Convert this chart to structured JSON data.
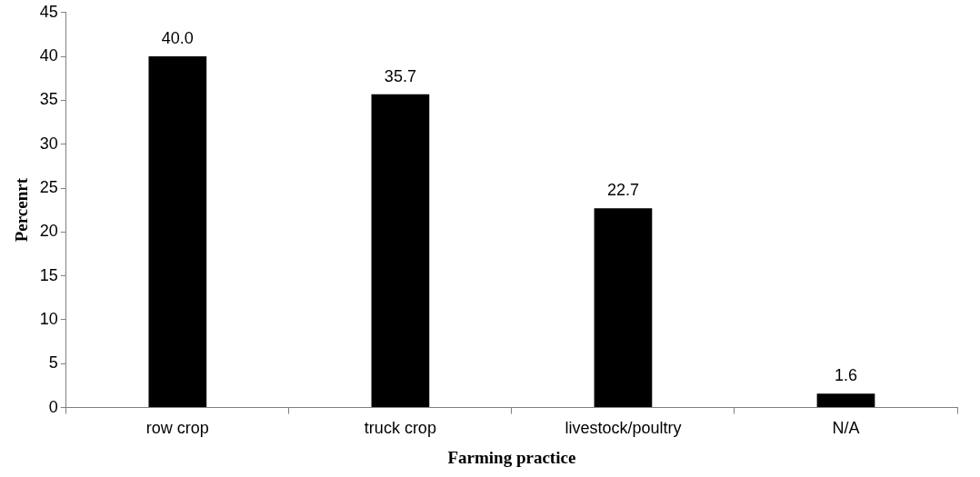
{
  "chart_data": {
    "type": "bar",
    "xlabel": "Farming practice",
    "ylabel": "Percenrt",
    "categories": [
      "row crop",
      "truck crop",
      "livestock/poultry",
      "N/A"
    ],
    "values": [
      40.0,
      35.7,
      22.7,
      1.6
    ],
    "value_labels": [
      "40.0",
      "35.7",
      "22.7",
      "1.6"
    ],
    "color": "#000000",
    "ylim": [
      0,
      45
    ],
    "yticks": [
      0,
      5,
      10,
      15,
      20,
      25,
      30,
      35,
      40,
      45
    ],
    "grid": false,
    "legend": false
  }
}
